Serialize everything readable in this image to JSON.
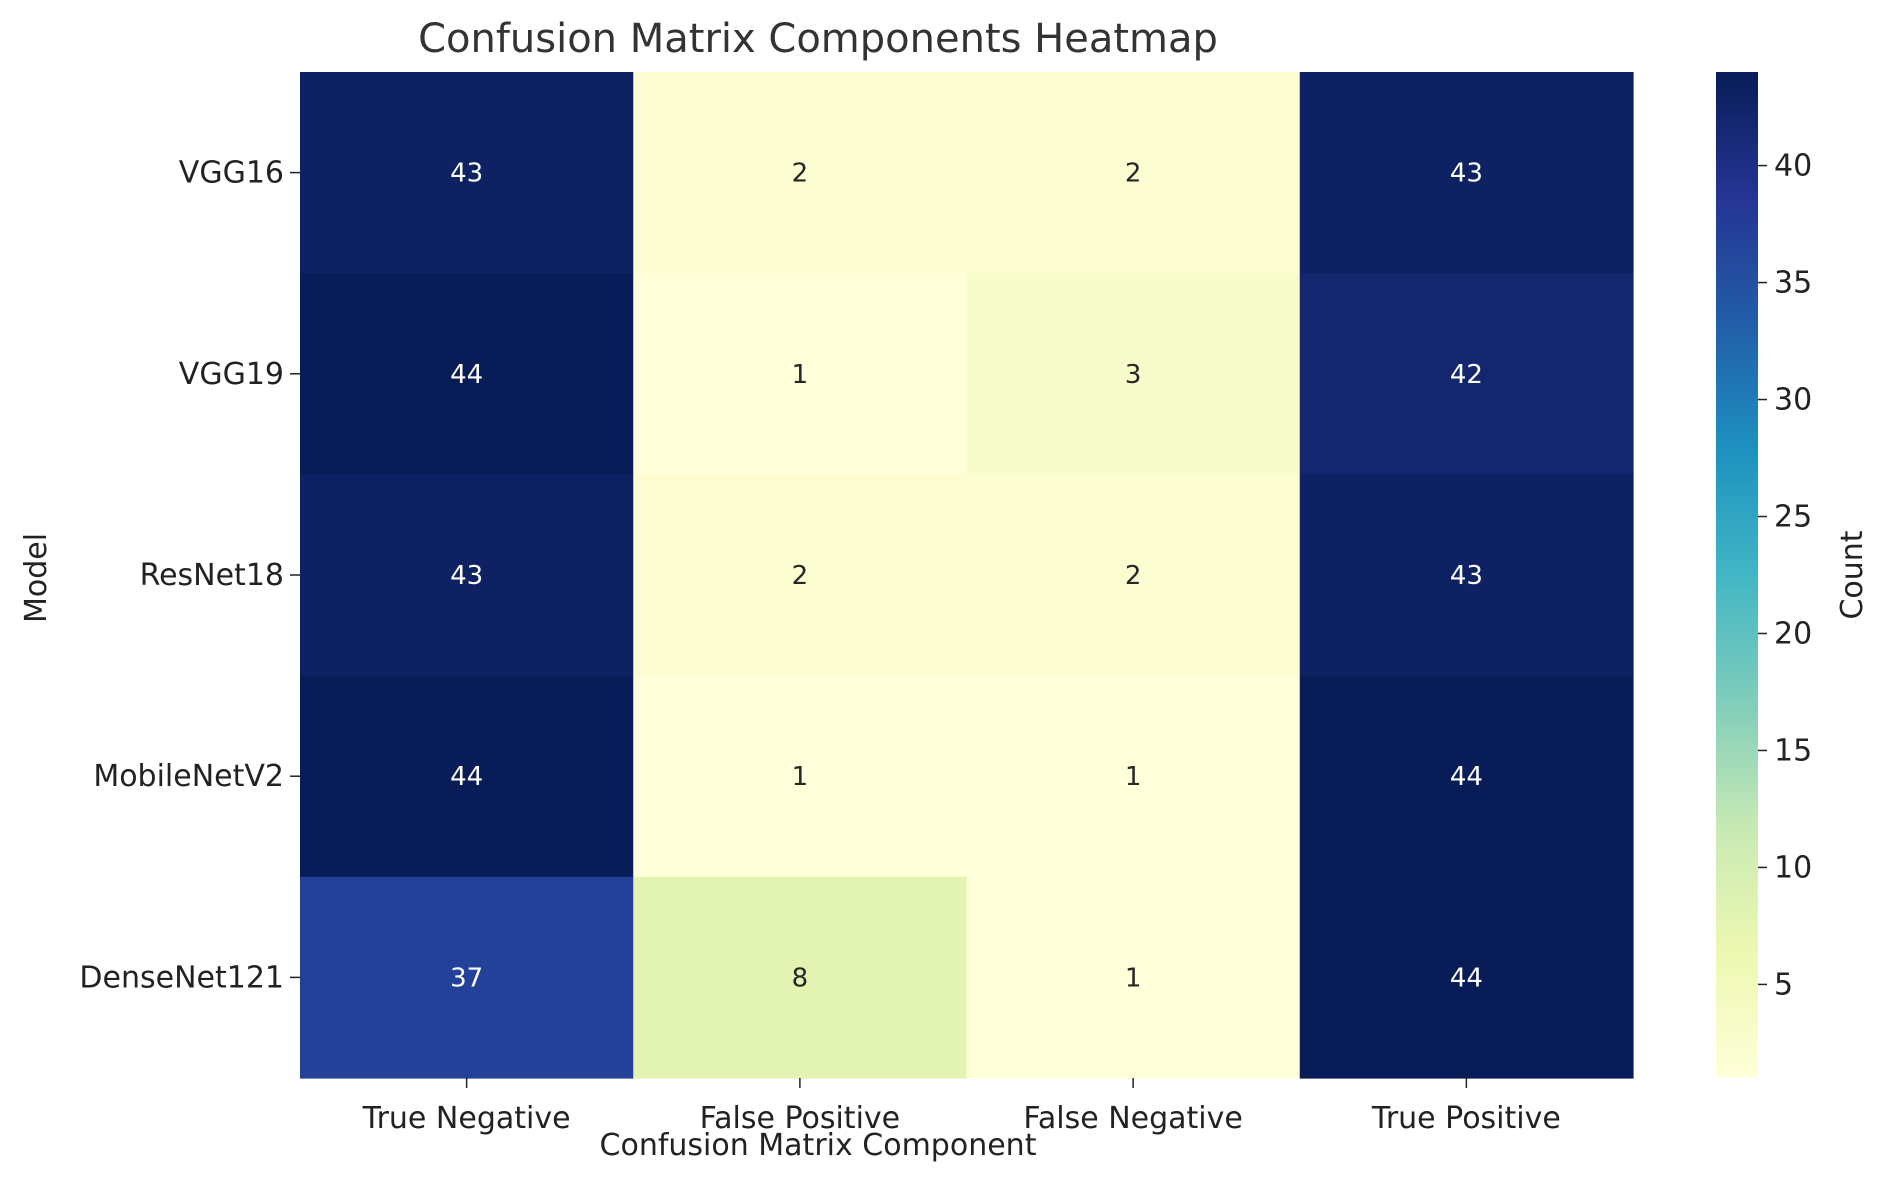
{
  "chart_data": {
    "type": "heatmap",
    "title": "Confusion Matrix Components Heatmap",
    "xlabel": "Confusion Matrix Component",
    "ylabel": "Model",
    "x_categories": [
      "True Negative",
      "False Positive",
      "False Negative",
      "True Positive"
    ],
    "y_categories": [
      "VGG16",
      "VGG19",
      "ResNet18",
      "MobileNetV2",
      "DenseNet121"
    ],
    "values": [
      [
        43,
        2,
        2,
        43
      ],
      [
        44,
        1,
        3,
        42
      ],
      [
        43,
        2,
        2,
        43
      ],
      [
        44,
        1,
        1,
        44
      ],
      [
        37,
        8,
        1,
        44
      ]
    ],
    "colorbar": {
      "label": "Count",
      "range": [
        1,
        44
      ],
      "ticks": [
        5,
        10,
        15,
        20,
        25,
        30,
        35,
        40
      ],
      "colormap": "YlGnBu"
    },
    "annotations": true
  }
}
